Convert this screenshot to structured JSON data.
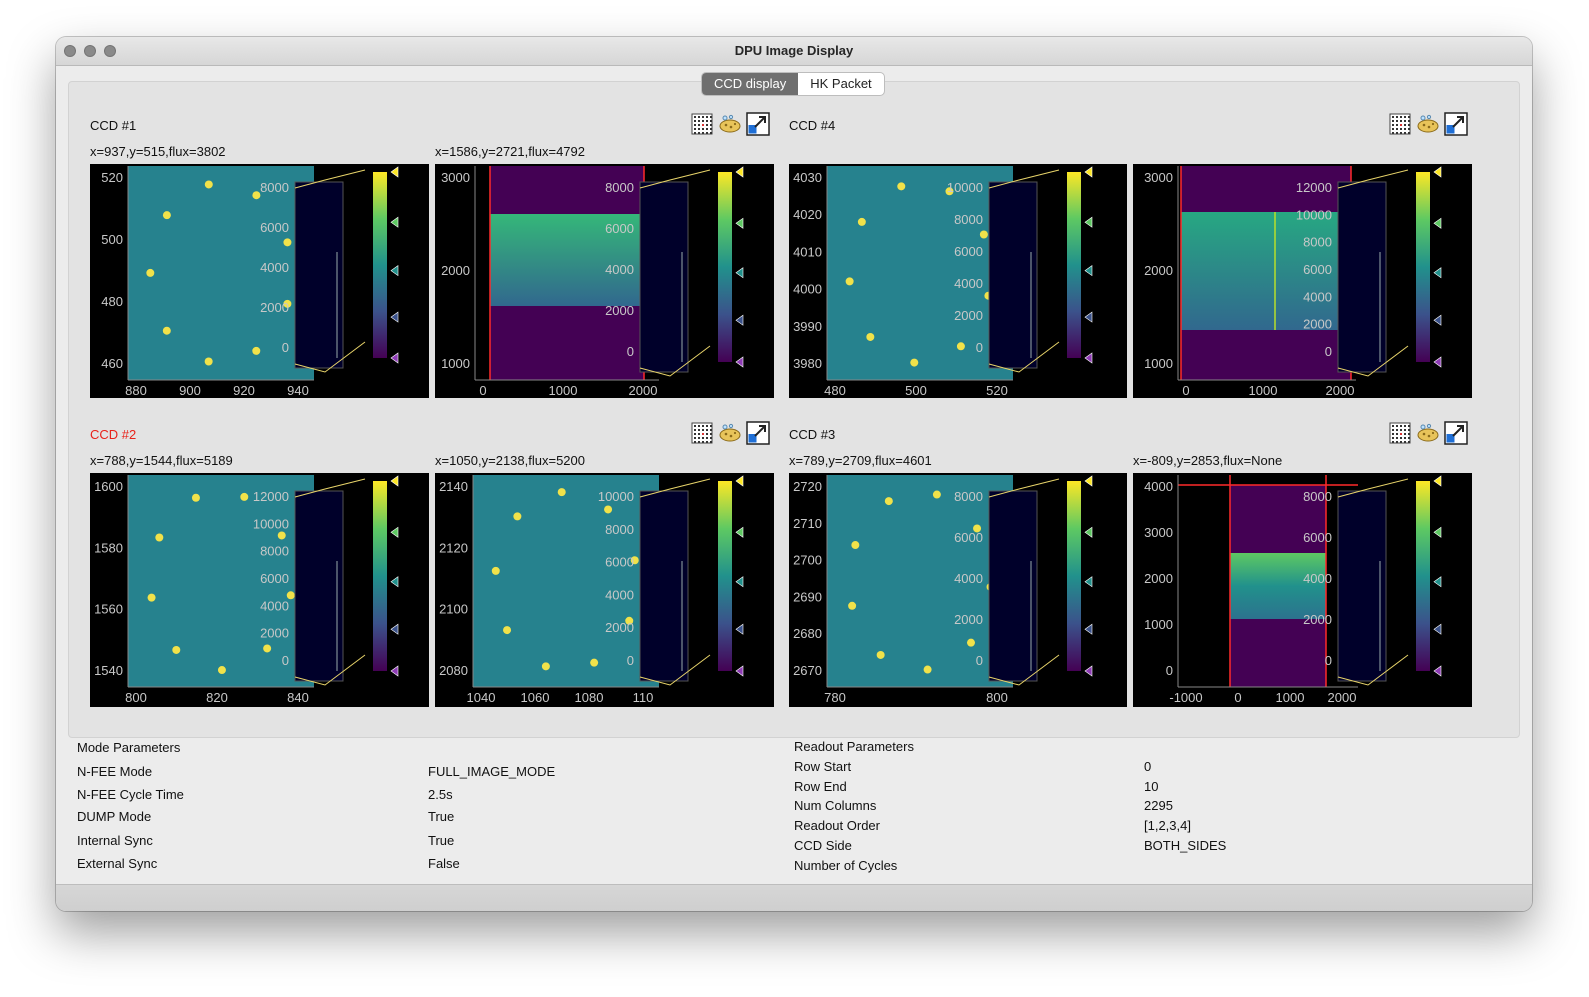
{
  "window": {
    "title": "DPU Image Display"
  },
  "tabs": [
    {
      "label": "CCD display",
      "active": true
    },
    {
      "label": "HK Packet",
      "active": false
    }
  ],
  "colors": {
    "accent_red": "#e8221a",
    "colormap": "viridis",
    "plot_background": "#000000",
    "frame_line": "#ff2a2a"
  },
  "icons": [
    "grid-icon",
    "sponge-icon",
    "expand-icon"
  ],
  "ccds": [
    {
      "label": "CCD #1",
      "highlight": false,
      "left": {
        "coords": "x=937,y=515,flux=3802",
        "xticks": [
          "880",
          "900",
          "920",
          "940"
        ],
        "yticks": [
          "520",
          "500",
          "480",
          "460"
        ],
        "kind": "stars"
      },
      "left_colorbar_ticks": [
        "8000",
        "6000",
        "4000",
        "2000",
        "0"
      ],
      "right": {
        "coords": "x=1586,y=2721,flux=4792",
        "xticks": [
          "0",
          "1000",
          "2000"
        ],
        "yticks": [
          "3000",
          "2000",
          "1000"
        ],
        "kind": "frame"
      },
      "right_colorbar_ticks": [
        "8000",
        "6000",
        "4000",
        "2000",
        "0"
      ]
    },
    {
      "label": "CCD #4",
      "highlight": false,
      "left": {
        "coords": "",
        "xticks": [
          "480",
          "500",
          "520"
        ],
        "yticks": [
          "4030",
          "4020",
          "4010",
          "4000",
          "3990",
          "3980"
        ],
        "kind": "stars"
      },
      "left_colorbar_ticks": [
        "10000",
        "8000",
        "6000",
        "4000",
        "2000",
        "0"
      ],
      "right": {
        "coords": "",
        "xticks": [
          "0",
          "1000",
          "2000"
        ],
        "yticks": [
          "3000",
          "2000",
          "1000"
        ],
        "kind": "frame2"
      },
      "right_colorbar_ticks": [
        "12000",
        "10000",
        "8000",
        "6000",
        "4000",
        "2000",
        "0"
      ]
    },
    {
      "label": "CCD #2",
      "highlight": true,
      "left": {
        "coords": "x=788,y=1544,flux=5189",
        "xticks": [
          "800",
          "820",
          "840"
        ],
        "yticks": [
          "1600",
          "1580",
          "1560",
          "1540"
        ],
        "kind": "stars"
      },
      "left_colorbar_ticks": [
        "12000",
        "10000",
        "8000",
        "6000",
        "4000",
        "2000",
        "0"
      ],
      "right": {
        "coords": "x=1050,y=2138,flux=5200",
        "xticks": [
          "1040",
          "1060",
          "1080",
          "110"
        ],
        "yticks": [
          "2140",
          "2120",
          "2100",
          "2080"
        ],
        "kind": "stars"
      },
      "right_colorbar_ticks": [
        "10000",
        "8000",
        "6000",
        "4000",
        "2000",
        "0"
      ]
    },
    {
      "label": "CCD #3",
      "highlight": false,
      "left": {
        "coords": "x=789,y=2709,flux=4601",
        "xticks": [
          "780",
          "800"
        ],
        "yticks": [
          "2720",
          "2710",
          "2700",
          "2690",
          "2680",
          "2670"
        ],
        "kind": "stars"
      },
      "left_colorbar_ticks": [
        "8000",
        "6000",
        "4000",
        "2000",
        "0"
      ],
      "right": {
        "coords": "x=-809,y=2853,flux=None",
        "xticks": [
          "-1000",
          "0",
          "1000",
          "2000"
        ],
        "yticks": [
          "4000",
          "3000",
          "2000",
          "1000",
          "0"
        ],
        "kind": "frame3"
      },
      "right_colorbar_ticks": [
        "8000",
        "6000",
        "4000",
        "2000",
        "0"
      ]
    }
  ],
  "mode_parameters": {
    "heading": "Mode Parameters",
    "rows": [
      {
        "label": "N-FEE Mode",
        "value": "FULL_IMAGE_MODE"
      },
      {
        "label": "N-FEE Cycle Time",
        "value": "2.5s"
      },
      {
        "label": "DUMP Mode",
        "value": "True"
      },
      {
        "label": "Internal Sync",
        "value": "True"
      },
      {
        "label": "External Sync",
        "value": "False"
      }
    ]
  },
  "readout_parameters": {
    "heading": "Readout Parameters",
    "rows": [
      {
        "label": "Row Start",
        "value": "0"
      },
      {
        "label": "Row End",
        "value": "10"
      },
      {
        "label": "Num Columns",
        "value": "2295"
      },
      {
        "label": "Readout Order",
        "value": "[1,2,3,4]"
      },
      {
        "label": "CCD Side",
        "value": "BOTH_SIDES"
      },
      {
        "label": "Number of Cycles",
        "value": ""
      }
    ]
  }
}
